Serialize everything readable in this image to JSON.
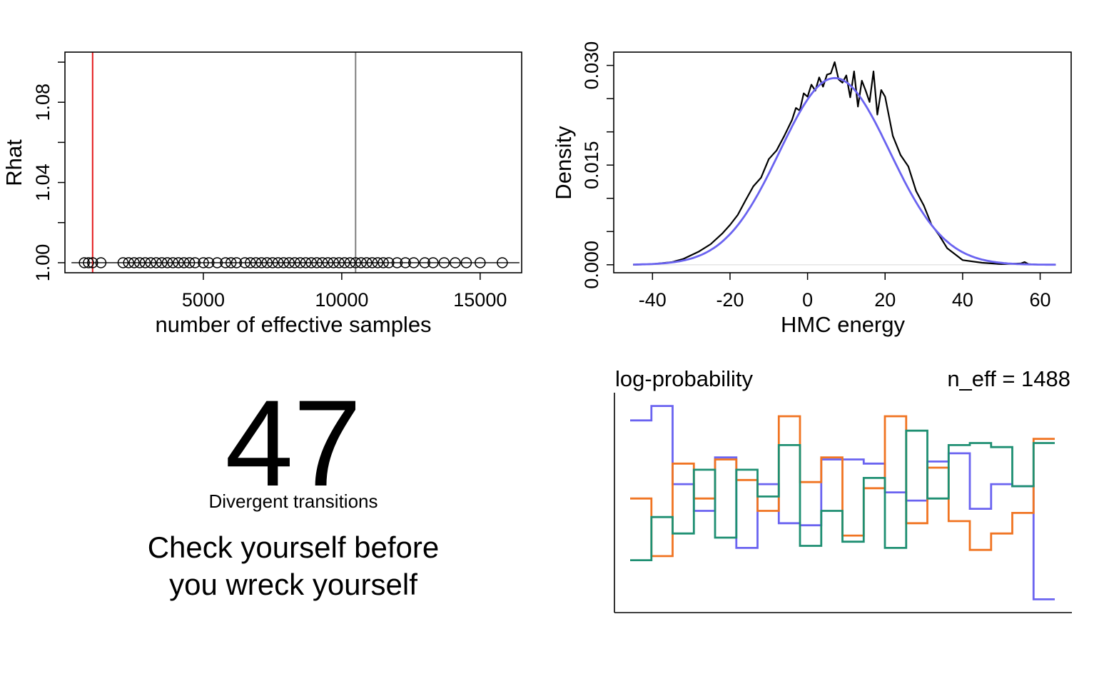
{
  "colors": {
    "red": "#e41a1c",
    "gray": "#7f7f7f",
    "blue": "#6a63f0",
    "orange": "#f07422",
    "green": "#1e8f72",
    "black": "#000000"
  },
  "chart_data": [
    {
      "type": "scatter",
      "xlabel": "number of effective samples",
      "ylabel": "Rhat",
      "xlim": [
        0,
        16500
      ],
      "ylim": [
        0.995,
        1.105
      ],
      "xticks": [
        5000,
        10000,
        15000
      ],
      "xtick_labels": [
        "5000",
        "10000",
        "15000"
      ],
      "yticks": [
        1.0,
        1.04,
        1.08
      ],
      "ytick_labels": [
        "1.00",
        "1.04",
        "1.08"
      ],
      "vlines": [
        {
          "x": 1000,
          "color": "red"
        },
        {
          "x": 10500,
          "color": "gray"
        }
      ],
      "x": [
        700,
        850,
        1000,
        1300,
        2100,
        2300,
        2500,
        2700,
        2900,
        3100,
        3300,
        3500,
        3700,
        3900,
        4100,
        4300,
        4500,
        4700,
        5000,
        5200,
        5500,
        5800,
        6000,
        6200,
        6500,
        6700,
        6900,
        7100,
        7300,
        7500,
        7700,
        7900,
        8100,
        8300,
        8500,
        8700,
        8900,
        9100,
        9300,
        9500,
        9700,
        9900,
        10100,
        10300,
        10500,
        10700,
        10900,
        11100,
        11300,
        11500,
        11700,
        12000,
        12300,
        12600,
        13000,
        13300,
        13700,
        14100,
        14500,
        15000,
        15800
      ],
      "y": [
        1.0,
        1.0,
        1.0,
        1.0,
        1.0,
        1.0,
        1.0,
        1.0,
        1.0,
        1.0,
        1.0,
        1.0,
        1.0,
        1.0,
        1.0,
        1.0,
        1.0,
        1.0,
        1.0,
        1.0,
        1.0,
        1.0,
        1.0,
        1.0,
        1.0,
        1.0,
        1.0,
        1.0,
        1.0,
        1.0,
        1.0,
        1.0,
        1.0,
        1.0,
        1.0,
        1.0,
        1.0,
        1.0,
        1.0,
        1.0,
        1.0,
        1.0,
        1.0,
        1.0,
        1.0,
        1.0,
        1.0,
        1.0,
        1.0,
        1.0,
        1.0,
        1.0,
        1.0,
        1.0,
        1.0,
        1.0,
        1.0,
        1.0,
        1.0,
        1.0,
        1.0
      ]
    },
    {
      "type": "line",
      "xlabel": "HMC energy",
      "ylabel": "Density",
      "xlim": [
        -50,
        68
      ],
      "ylim": [
        -0.0012,
        0.032
      ],
      "xticks": [
        -40,
        -20,
        0,
        20,
        40,
        60
      ],
      "xtick_labels": [
        "-40",
        "-20",
        "0",
        "20",
        "40",
        "60"
      ],
      "yticks": [
        0.0,
        0.005,
        0.01,
        0.015,
        0.02,
        0.025,
        0.03
      ],
      "ytick_labels": [
        "0.000",
        "",
        "",
        "0.015",
        "",
        "",
        "0.030"
      ],
      "series": [
        {
          "color": "black",
          "x": [
            -45,
            -40,
            -35,
            -32,
            -28,
            -25,
            -22,
            -20,
            -18,
            -16,
            -14,
            -12,
            -10,
            -8,
            -6,
            -4,
            -3,
            -2,
            -1,
            0,
            1,
            2,
            3,
            4,
            5,
            6,
            7,
            8,
            9,
            10,
            11,
            12,
            13,
            14,
            15,
            16,
            17,
            18,
            19,
            20,
            22,
            24,
            26,
            28,
            30,
            32,
            34,
            36,
            38,
            40,
            45,
            50,
            55,
            56,
            57,
            60,
            64
          ],
          "y": [
            0.0,
            0.0001,
            0.0004,
            0.0009,
            0.002,
            0.0031,
            0.0047,
            0.006,
            0.0075,
            0.0097,
            0.0118,
            0.0131,
            0.0159,
            0.0172,
            0.0194,
            0.0218,
            0.0236,
            0.0232,
            0.0258,
            0.0253,
            0.0271,
            0.0262,
            0.0282,
            0.0268,
            0.0286,
            0.0288,
            0.0305,
            0.0279,
            0.0274,
            0.0285,
            0.0252,
            0.0291,
            0.0238,
            0.0277,
            0.0262,
            0.0245,
            0.0291,
            0.0226,
            0.0263,
            0.0253,
            0.0194,
            0.0165,
            0.0148,
            0.0111,
            0.0089,
            0.006,
            0.0044,
            0.0025,
            0.0016,
            0.0007,
            0.0003,
            0.0001,
            0.0002,
            0.0004,
            0.0001,
            0.0,
            0.0
          ]
        },
        {
          "color": "blue",
          "type": "normal_density",
          "mean": 7,
          "sd": 14.2,
          "x_range": [
            -45,
            64
          ]
        }
      ]
    },
    {
      "type": "bar",
      "title": "log-probability",
      "annotation": "n_eff = 1488",
      "ylim": [
        0,
        1
      ],
      "bins": 20,
      "series": [
        {
          "color": "blue",
          "values": [
            0.9,
            0.97,
            0.59,
            0.46,
            0.72,
            0.28,
            0.59,
            0.4,
            0.39,
            0.71,
            0.71,
            0.69,
            0.55,
            0.51,
            0.7,
            0.74,
            0.47,
            0.59,
            0.58,
            0.03
          ]
        },
        {
          "color": "orange",
          "values": [
            0.52,
            0.24,
            0.69,
            0.52,
            0.71,
            0.61,
            0.46,
            0.92,
            0.6,
            0.72,
            0.34,
            0.57,
            0.92,
            0.4,
            0.67,
            0.41,
            0.27,
            0.35,
            0.45,
            0.81
          ]
        },
        {
          "color": "green",
          "values": [
            0.22,
            0.43,
            0.35,
            0.66,
            0.33,
            0.66,
            0.53,
            0.78,
            0.29,
            0.46,
            0.31,
            0.62,
            0.28,
            0.85,
            0.52,
            0.78,
            0.79,
            0.77,
            0.58,
            0.79
          ]
        }
      ]
    }
  ],
  "divergence_panel": {
    "count": "47",
    "label": "Divergent transitions",
    "message_line1": "Check yourself before",
    "message_line2": "you wreck yourself"
  }
}
